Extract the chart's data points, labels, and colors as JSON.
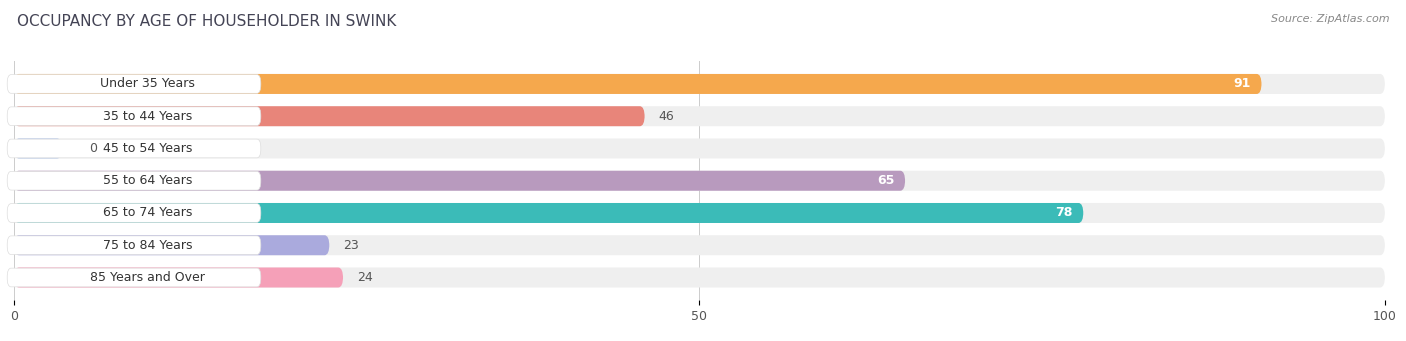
{
  "title": "OCCUPANCY BY AGE OF HOUSEHOLDER IN SWINK",
  "source": "Source: ZipAtlas.com",
  "categories": [
    "Under 35 Years",
    "35 to 44 Years",
    "45 to 54 Years",
    "55 to 64 Years",
    "65 to 74 Years",
    "75 to 84 Years",
    "85 Years and Over"
  ],
  "values": [
    91,
    46,
    0,
    65,
    78,
    23,
    24
  ],
  "bar_colors": [
    "#F5A84D",
    "#E8857A",
    "#AABFE8",
    "#B89ABE",
    "#3BBBB8",
    "#AAAADD",
    "#F5A0B8"
  ],
  "xlim": [
    0,
    100
  ],
  "label_fontsize": 9,
  "value_fontsize": 9,
  "title_fontsize": 11,
  "bg_color": "#FFFFFF",
  "bar_bg_color": "#EFEFEF",
  "bar_height": 0.62,
  "label_pill_color": "#FFFFFF",
  "value_inside_color": "#FFFFFF",
  "value_outside_color": "#555555"
}
